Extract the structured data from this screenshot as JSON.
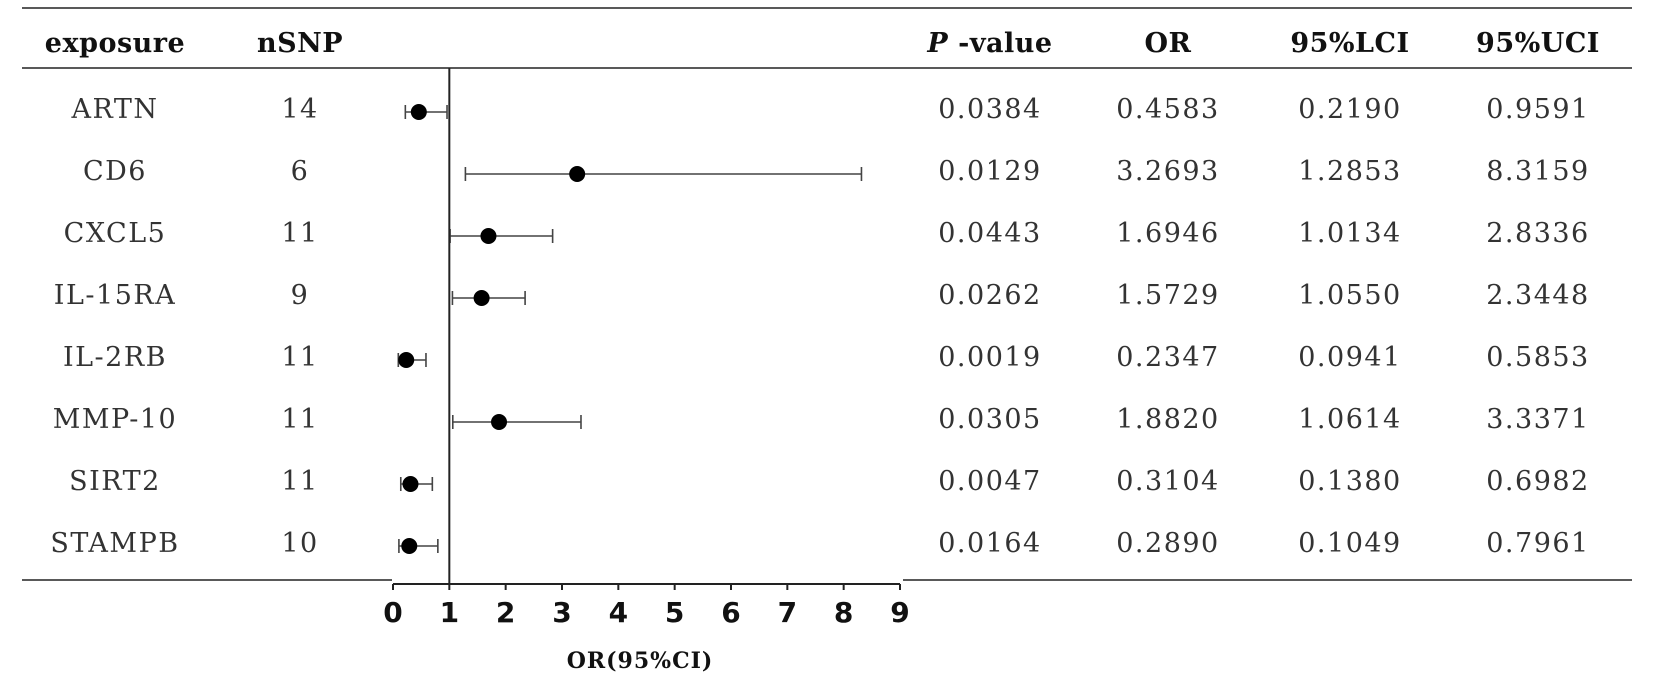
{
  "chart_data": {
    "type": "forest",
    "columns": {
      "exposure": "exposure",
      "nsnp": "nSNP",
      "pvalue_italic": "P",
      "pvalue_rest": " -value",
      "or": "OR",
      "lci": "95%LCI",
      "uci": "95%UCI"
    },
    "rows": [
      {
        "exposure": "ARTN",
        "nsnp": "14",
        "pvalue": "0.0384",
        "or": "0.4583",
        "lci": "0.2190",
        "uci": "0.9591"
      },
      {
        "exposure": "CD6",
        "nsnp": "6",
        "pvalue": "0.0129",
        "or": "3.2693",
        "lci": "1.2853",
        "uci": "8.3159"
      },
      {
        "exposure": "CXCL5",
        "nsnp": "11",
        "pvalue": "0.0443",
        "or": "1.6946",
        "lci": "1.0134",
        "uci": "2.8336"
      },
      {
        "exposure": "IL-15RA",
        "nsnp": "9",
        "pvalue": "0.0262",
        "or": "1.5729",
        "lci": "1.0550",
        "uci": "2.3448"
      },
      {
        "exposure": "IL-2RB",
        "nsnp": "11",
        "pvalue": "0.0019",
        "or": "0.2347",
        "lci": "0.0941",
        "uci": "0.5853"
      },
      {
        "exposure": "MMP-10",
        "nsnp": "11",
        "pvalue": "0.0305",
        "or": "1.8820",
        "lci": "1.0614",
        "uci": "3.3371"
      },
      {
        "exposure": "SIRT2",
        "nsnp": "11",
        "pvalue": "0.0047",
        "or": "0.3104",
        "lci": "0.1380",
        "uci": "0.6982"
      },
      {
        "exposure": "STAMPB",
        "nsnp": "10",
        "pvalue": "0.0164",
        "or": "0.2890",
        "lci": "0.1049",
        "uci": "0.7961"
      }
    ],
    "xlabel": "OR(95%CI)",
    "xlim": [
      0,
      9
    ],
    "xticks": [
      "0",
      "1",
      "2",
      "3",
      "4",
      "5",
      "6",
      "7",
      "8",
      "9"
    ],
    "reference_line": 1
  }
}
